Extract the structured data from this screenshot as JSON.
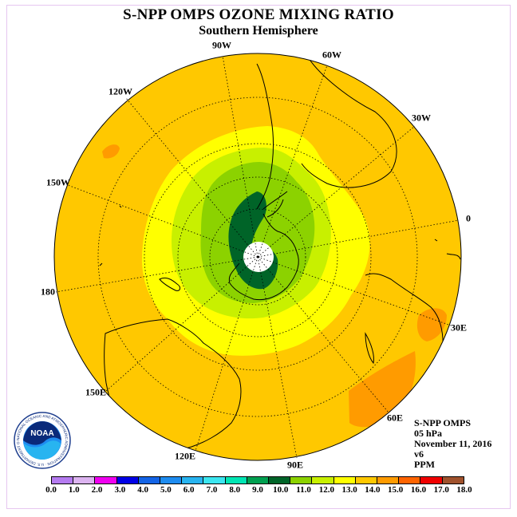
{
  "title": "S-NPP OMPS OZONE MIXING RATIO",
  "subtitle": "Southern Hemisphere",
  "longitude_labels": [
    "90W",
    "60W",
    "30W",
    "0",
    "30E",
    "60E",
    "90E",
    "120E",
    "150E",
    "180",
    "150W",
    "120W"
  ],
  "info": {
    "instrument": "S-NPP OMPS",
    "level": "05 hPa",
    "date": "November 11, 2016",
    "version": "v6",
    "units": "PPM"
  },
  "logo": {
    "text": "NOAA",
    "ring_text": "NATIONAL OCEANIC AND ATMOSPHERIC ADMINISTRATION · U.S. DEPARTMENT OF COMMERCE"
  },
  "colorbar": {
    "ticks": [
      "0.0",
      "1.0",
      "2.0",
      "3.0",
      "4.0",
      "5.0",
      "6.0",
      "7.0",
      "8.0",
      "9.0",
      "10.0",
      "11.0",
      "12.0",
      "13.0",
      "14.0",
      "15.0",
      "16.0",
      "17.0",
      "18.0"
    ],
    "colors": [
      "#b57bf0",
      "#dcb4f0",
      "#f000f0",
      "#0000e6",
      "#1464e6",
      "#1e8cf0",
      "#28b4f0",
      "#3ce6f0",
      "#00e6b4",
      "#00a050",
      "#006428",
      "#8cd200",
      "#c8f000",
      "#ffff00",
      "#ffc800",
      "#ff9b00",
      "#ff6400",
      "#f00000",
      "#a0522d"
    ]
  },
  "colors": {
    "background_ozone": "#ffc800",
    "pole_fill": "#ffffff"
  }
}
